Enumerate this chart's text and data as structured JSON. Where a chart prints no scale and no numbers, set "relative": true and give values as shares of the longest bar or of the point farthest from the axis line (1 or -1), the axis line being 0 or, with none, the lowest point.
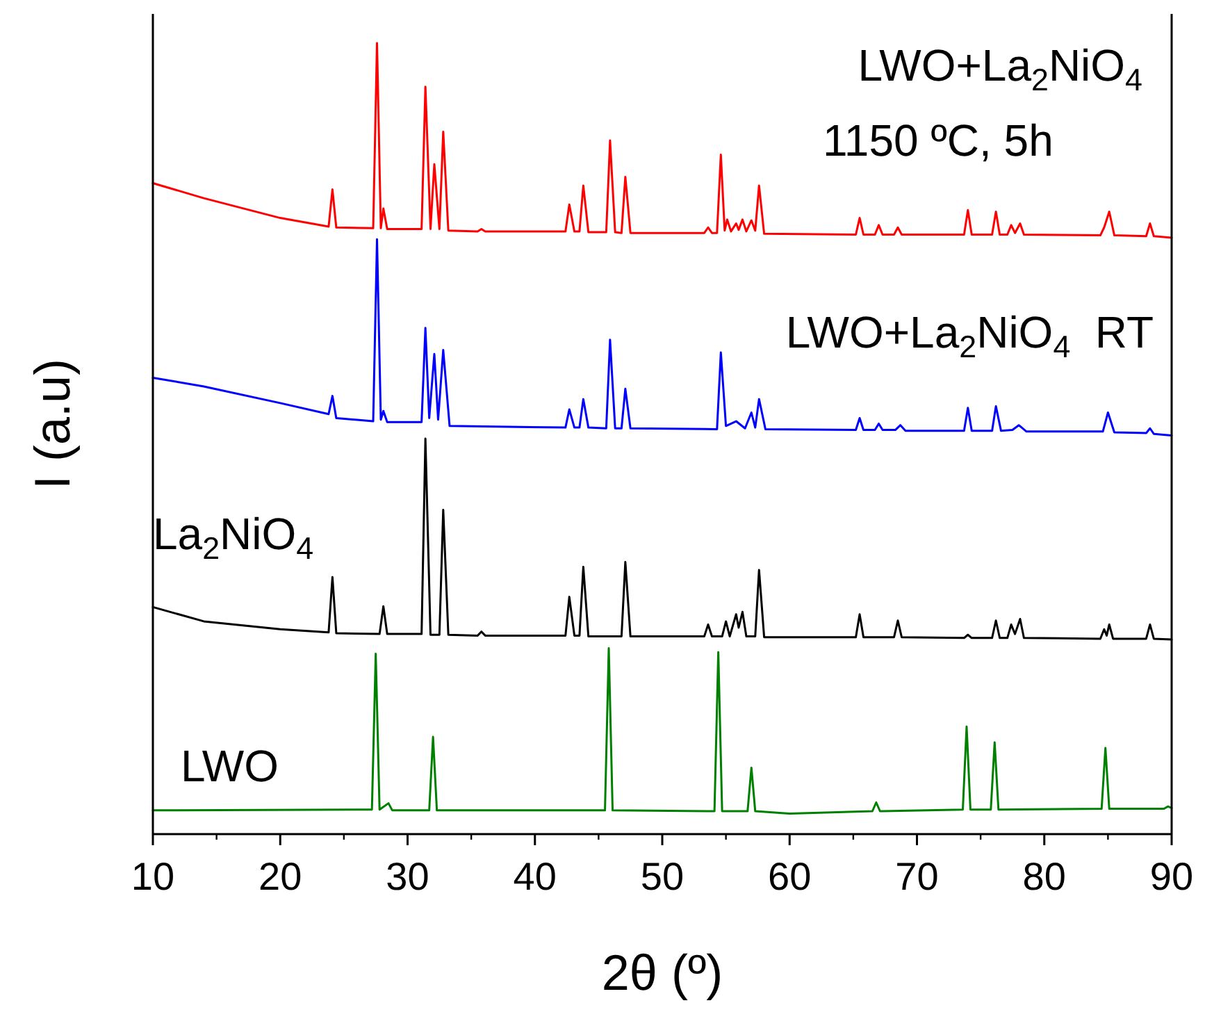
{
  "chart_data": {
    "type": "line",
    "relative": true,
    "xlabel": "2θ (º)",
    "ylabel": "I (a.u)",
    "xlim": [
      10,
      90
    ],
    "xticks": [
      10,
      20,
      30,
      40,
      50,
      60,
      70,
      80,
      90
    ],
    "tick_labels": "x",
    "annotations": [
      "1150 ºC, 5h"
    ],
    "series": [
      {
        "name": "LWO+La$_{2}$NiO$_{4}$",
        "color": "#ff0000",
        "x": [
          10,
          14,
          20,
          23.8,
          24.1,
          24.4,
          27.3,
          27.6,
          27.9,
          28.1,
          28.4,
          31.1,
          31.4,
          31.8,
          32.1,
          32.5,
          32.8,
          33.2,
          35.5,
          35.8,
          36.1,
          42.4,
          42.7,
          43.1,
          43.5,
          43.8,
          44.2,
          45.6,
          45.9,
          46.3,
          46.8,
          47.1,
          47.5,
          53.3,
          53.6,
          53.9,
          54.3,
          54.6,
          54.9,
          55.1,
          55.4,
          55.8,
          56.0,
          56.3,
          56.6,
          57.0,
          57.3,
          57.6,
          58.0,
          65.2,
          65.5,
          65.8,
          66.7,
          67.0,
          67.3,
          68.2,
          68.5,
          68.8,
          73.7,
          74.0,
          74.3,
          75.9,
          76.2,
          76.5,
          77.1,
          77.4,
          77.7,
          78.1,
          78.4,
          84.4,
          84.7,
          85.1,
          85.5,
          88.0,
          88.3,
          88.6,
          90
        ],
        "values": [
          0.823,
          0.804,
          0.779,
          0.768,
          0.815,
          0.767,
          0.766,
          1.0,
          0.766,
          0.791,
          0.765,
          0.765,
          0.945,
          0.765,
          0.847,
          0.765,
          0.888,
          0.763,
          0.762,
          0.765,
          0.762,
          0.762,
          0.796,
          0.762,
          0.762,
          0.82,
          0.761,
          0.761,
          0.877,
          0.761,
          0.76,
          0.831,
          0.76,
          0.76,
          0.767,
          0.76,
          0.76,
          0.859,
          0.763,
          0.777,
          0.762,
          0.772,
          0.764,
          0.777,
          0.762,
          0.776,
          0.763,
          0.82,
          0.759,
          0.758,
          0.779,
          0.758,
          0.758,
          0.77,
          0.758,
          0.758,
          0.767,
          0.758,
          0.758,
          0.789,
          0.758,
          0.758,
          0.787,
          0.758,
          0.758,
          0.77,
          0.76,
          0.772,
          0.758,
          0.757,
          0.767,
          0.787,
          0.757,
          0.756,
          0.772,
          0.756,
          0.754
        ]
      },
      {
        "name": "LWO+La$_{2}$NiO$_{4}$  RT",
        "color": "#0000ff",
        "x": [
          10,
          14,
          20,
          23.8,
          24.1,
          24.4,
          27.3,
          27.6,
          27.9,
          28.1,
          28.4,
          31.1,
          31.4,
          31.7,
          32.1,
          32.4,
          32.8,
          33.3,
          42.4,
          42.7,
          43.1,
          43.5,
          43.8,
          44.2,
          45.6,
          45.9,
          46.3,
          46.8,
          47.1,
          47.5,
          54.3,
          54.6,
          55.0,
          55.8,
          56.5,
          57.0,
          57.3,
          57.6,
          58.1,
          65.2,
          65.5,
          65.8,
          66.7,
          67.0,
          67.3,
          68.3,
          68.7,
          69.1,
          73.7,
          74.0,
          74.3,
          75.9,
          76.2,
          76.6,
          77.5,
          78.0,
          78.6,
          84.6,
          85.0,
          85.5,
          88.0,
          88.3,
          88.6,
          90
        ],
        "values": [
          0.577,
          0.566,
          0.545,
          0.531,
          0.554,
          0.526,
          0.522,
          0.752,
          0.524,
          0.535,
          0.521,
          0.521,
          0.64,
          0.526,
          0.607,
          0.524,
          0.612,
          0.516,
          0.514,
          0.537,
          0.514,
          0.514,
          0.55,
          0.514,
          0.513,
          0.625,
          0.513,
          0.513,
          0.563,
          0.513,
          0.512,
          0.609,
          0.516,
          0.522,
          0.513,
          0.533,
          0.514,
          0.55,
          0.512,
          0.511,
          0.526,
          0.511,
          0.511,
          0.519,
          0.511,
          0.511,
          0.517,
          0.51,
          0.51,
          0.539,
          0.51,
          0.51,
          0.541,
          0.51,
          0.511,
          0.517,
          0.509,
          0.509,
          0.533,
          0.508,
          0.507,
          0.513,
          0.506,
          0.504
        ]
      },
      {
        "name": "La$_{2}$NiO$_{4}$",
        "color": "#000000",
        "x": [
          10,
          14,
          20,
          23.8,
          24.1,
          24.4,
          27.8,
          28.1,
          28.4,
          31.1,
          31.4,
          31.8,
          32.5,
          32.8,
          33.2,
          35.5,
          35.8,
          36.1,
          42.4,
          42.7,
          43.1,
          43.5,
          43.8,
          44.2,
          46.8,
          47.1,
          47.5,
          53.3,
          53.6,
          53.9,
          54.7,
          55.0,
          55.3,
          55.8,
          56.0,
          56.3,
          56.6,
          57.3,
          57.6,
          58.0,
          65.2,
          65.5,
          65.8,
          68.2,
          68.5,
          68.8,
          73.7,
          74.0,
          74.3,
          75.9,
          76.2,
          76.5,
          77.1,
          77.4,
          77.7,
          78.1,
          78.4,
          84.4,
          84.7,
          84.9,
          85.1,
          85.4,
          88.0,
          88.3,
          88.6,
          90
        ],
        "values": [
          0.287,
          0.269,
          0.259,
          0.255,
          0.325,
          0.254,
          0.253,
          0.288,
          0.253,
          0.253,
          0.5,
          0.252,
          0.252,
          0.41,
          0.252,
          0.251,
          0.256,
          0.251,
          0.251,
          0.3,
          0.251,
          0.251,
          0.338,
          0.25,
          0.25,
          0.344,
          0.25,
          0.25,
          0.265,
          0.25,
          0.25,
          0.269,
          0.25,
          0.278,
          0.261,
          0.281,
          0.25,
          0.25,
          0.334,
          0.249,
          0.249,
          0.278,
          0.249,
          0.249,
          0.27,
          0.249,
          0.248,
          0.252,
          0.248,
          0.248,
          0.27,
          0.248,
          0.248,
          0.265,
          0.253,
          0.272,
          0.248,
          0.247,
          0.259,
          0.251,
          0.265,
          0.247,
          0.247,
          0.265,
          0.247,
          0.246
        ]
      },
      {
        "name": "LWO",
        "color": "#008000",
        "x": [
          10,
          27.2,
          27.5,
          27.8,
          28.5,
          28.8,
          31.7,
          32.0,
          32.3,
          45.5,
          45.8,
          46.1,
          54.1,
          54.4,
          54.7,
          56.7,
          57.0,
          57.3,
          60,
          66.5,
          66.8,
          67.1,
          73.6,
          73.9,
          74.2,
          75.8,
          76.1,
          76.4,
          84.5,
          84.8,
          85.1,
          89.4,
          89.7,
          90
        ],
        "values": [
          0.03,
          0.031,
          0.228,
          0.031,
          0.039,
          0.03,
          0.03,
          0.123,
          0.03,
          0.03,
          0.235,
          0.03,
          0.029,
          0.23,
          0.029,
          0.029,
          0.084,
          0.029,
          0.026,
          0.029,
          0.04,
          0.029,
          0.031,
          0.136,
          0.031,
          0.031,
          0.116,
          0.031,
          0.032,
          0.109,
          0.032,
          0.032,
          0.035,
          0.033
        ]
      }
    ]
  }
}
